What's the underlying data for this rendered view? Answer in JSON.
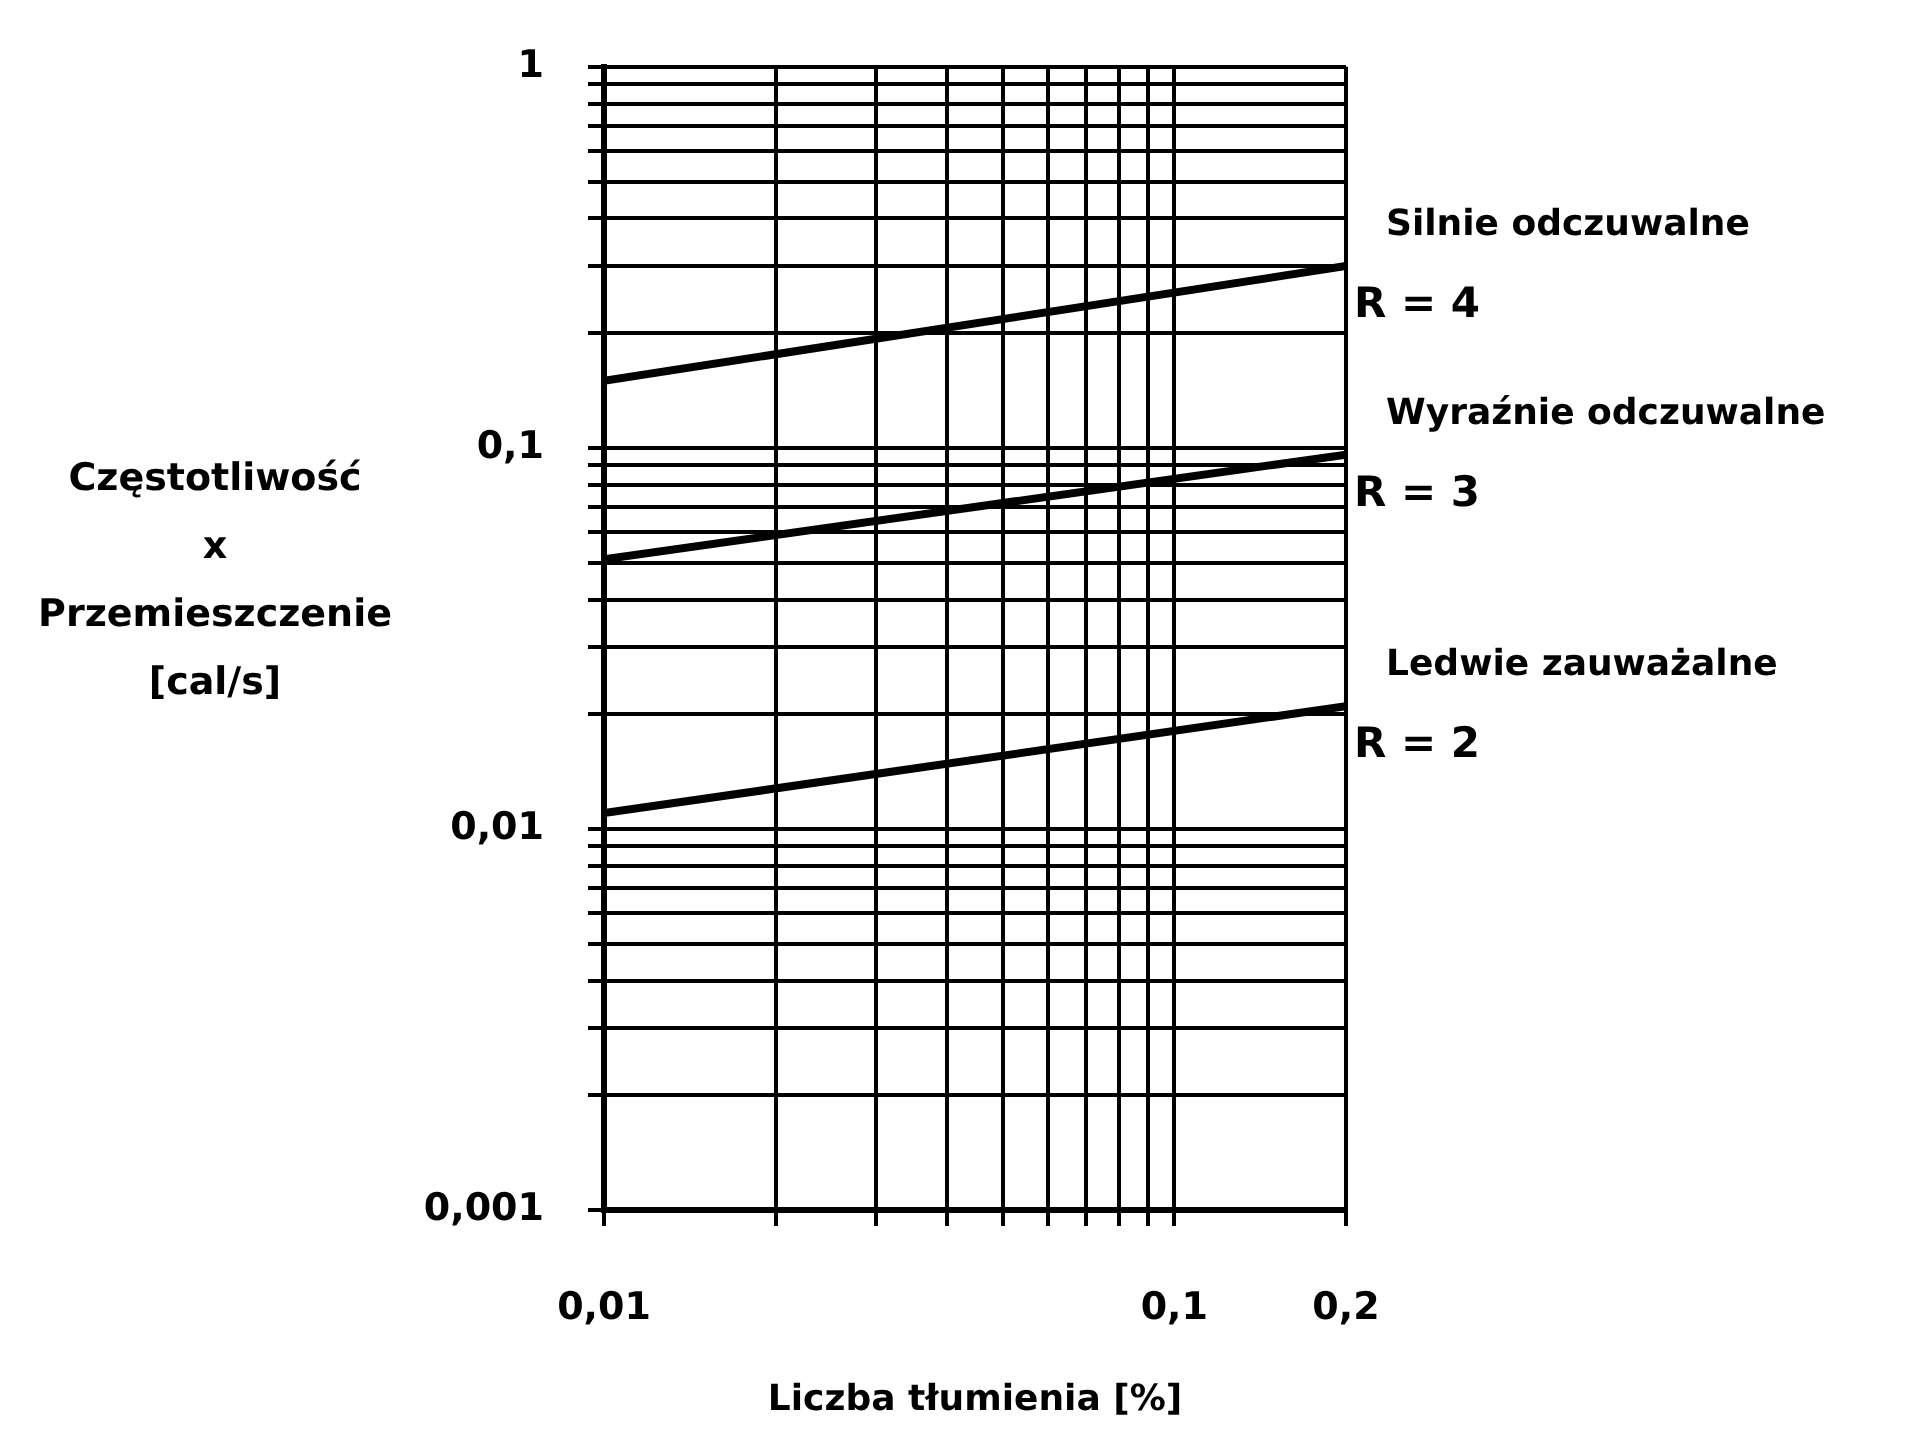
{
  "chart_data": {
    "type": "line",
    "xlabel": "Liczba tłumienia [%]",
    "ylabel": "Częstotliwość\nx\nPrzemieszczenie\n[cal/s]",
    "log": "xy",
    "grid": true,
    "legend": false,
    "marker": "none",
    "line_style": "solid",
    "x": [
      0.01,
      0.2
    ],
    "series": [
      {
        "name": "Silnie odczuwalne",
        "color": "#000000",
        "values": [
          0.15,
          0.3
        ]
      },
      {
        "name": "Wyraźnie odczuwalne",
        "color": "#000000",
        "values": [
          0.051,
          0.096
        ]
      },
      {
        "name": "Ledwie zauważalne",
        "color": "#000000",
        "values": [
          0.011,
          0.021
        ]
      }
    ],
    "annotations": [
      "R = 4",
      "R = 3",
      "R = 2"
    ],
    "xlim": [
      0.01,
      0.2
    ],
    "ylim": [
      0.001,
      1
    ],
    "xticks": [
      {
        "value": 0.01,
        "label": "0,01"
      },
      {
        "value": 0.02,
        "label": null
      },
      {
        "value": 0.03,
        "label": null
      },
      {
        "value": 0.04,
        "label": null
      },
      {
        "value": 0.05,
        "label": null
      },
      {
        "value": 0.06,
        "label": null
      },
      {
        "value": 0.07,
        "label": null
      },
      {
        "value": 0.08,
        "label": null
      },
      {
        "value": 0.09,
        "label": null
      },
      {
        "value": 0.1,
        "label": "0,1"
      },
      {
        "value": 0.2,
        "label": "0,2"
      }
    ],
    "yticks": [
      {
        "value": 0.001,
        "label": "0,001"
      },
      {
        "value": 0.002,
        "label": null
      },
      {
        "value": 0.003,
        "label": null
      },
      {
        "value": 0.004,
        "label": null
      },
      {
        "value": 0.005,
        "label": null
      },
      {
        "value": 0.006,
        "label": null
      },
      {
        "value": 0.007,
        "label": null
      },
      {
        "value": 0.008,
        "label": null
      },
      {
        "value": 0.009,
        "label": null
      },
      {
        "value": 0.01,
        "label": "0,01"
      },
      {
        "value": 0.02,
        "label": null
      },
      {
        "value": 0.03,
        "label": null
      },
      {
        "value": 0.04,
        "label": null
      },
      {
        "value": 0.05,
        "label": null
      },
      {
        "value": 0.06,
        "label": null
      },
      {
        "value": 0.07,
        "label": null
      },
      {
        "value": 0.08,
        "label": null
      },
      {
        "value": 0.09,
        "label": null
      },
      {
        "value": 0.1,
        "label": "0,1"
      },
      {
        "value": 0.2,
        "label": null
      },
      {
        "value": 0.3,
        "label": null
      },
      {
        "value": 0.4,
        "label": null
      },
      {
        "value": 0.5,
        "label": null
      },
      {
        "value": 0.6,
        "label": null
      },
      {
        "value": 0.7,
        "label": null
      },
      {
        "value": 0.8,
        "label": null
      },
      {
        "value": 0.9,
        "label": null
      },
      {
        "value": 1,
        "label": "1"
      }
    ]
  }
}
